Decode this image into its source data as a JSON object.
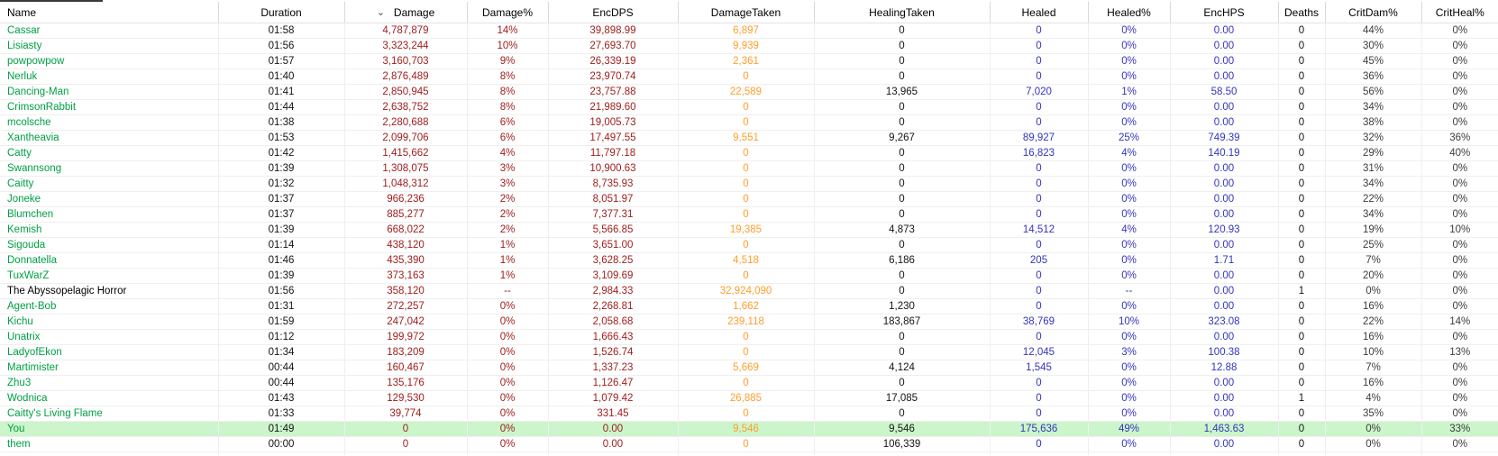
{
  "table": {
    "sort_indicator": "⌄",
    "sorted_column": "Damage",
    "columns": [
      {
        "key": "name",
        "label": "Name"
      },
      {
        "key": "duration",
        "label": "Duration"
      },
      {
        "key": "damage",
        "label": "Damage",
        "sorted_desc": true
      },
      {
        "key": "damage_pct",
        "label": "Damage%"
      },
      {
        "key": "encdps",
        "label": "EncDPS"
      },
      {
        "key": "damage_taken",
        "label": "DamageTaken"
      },
      {
        "key": "healing_taken",
        "label": "HealingTaken"
      },
      {
        "key": "healed",
        "label": "Healed"
      },
      {
        "key": "healed_pct",
        "label": "Healed%"
      },
      {
        "key": "enchps",
        "label": "EncHPS"
      },
      {
        "key": "deaths",
        "label": "Deaths"
      },
      {
        "key": "critdam_pct",
        "label": "CritDam%"
      },
      {
        "key": "critheal_pct",
        "label": "CritHeal%"
      }
    ],
    "rows": [
      {
        "name": "Cassar",
        "duration": "01:58",
        "damage": "4,787,879",
        "damage_pct": "14%",
        "encdps": "39,898.99",
        "damage_taken": "6,897",
        "healing_taken": "0",
        "healed": "0",
        "healed_pct": "0%",
        "enchps": "0.00",
        "deaths": "0",
        "critdam_pct": "44%",
        "critheal_pct": "0%",
        "type": "player",
        "highlight": false
      },
      {
        "name": "Lisiasty",
        "duration": "01:56",
        "damage": "3,323,244",
        "damage_pct": "10%",
        "encdps": "27,693.70",
        "damage_taken": "9,939",
        "healing_taken": "0",
        "healed": "0",
        "healed_pct": "0%",
        "enchps": "0.00",
        "deaths": "0",
        "critdam_pct": "30%",
        "critheal_pct": "0%",
        "type": "player",
        "highlight": false
      },
      {
        "name": "powpowpow",
        "duration": "01:57",
        "damage": "3,160,703",
        "damage_pct": "9%",
        "encdps": "26,339.19",
        "damage_taken": "2,361",
        "healing_taken": "0",
        "healed": "0",
        "healed_pct": "0%",
        "enchps": "0.00",
        "deaths": "0",
        "critdam_pct": "45%",
        "critheal_pct": "0%",
        "type": "player",
        "highlight": false
      },
      {
        "name": "Nerluk",
        "duration": "01:40",
        "damage": "2,876,489",
        "damage_pct": "8%",
        "encdps": "23,970.74",
        "damage_taken": "0",
        "healing_taken": "0",
        "healed": "0",
        "healed_pct": "0%",
        "enchps": "0.00",
        "deaths": "0",
        "critdam_pct": "36%",
        "critheal_pct": "0%",
        "type": "player",
        "highlight": false
      },
      {
        "name": "Dancing-Man",
        "duration": "01:41",
        "damage": "2,850,945",
        "damage_pct": "8%",
        "encdps": "23,757.88",
        "damage_taken": "22,589",
        "healing_taken": "13,965",
        "healed": "7,020",
        "healed_pct": "1%",
        "enchps": "58.50",
        "deaths": "0",
        "critdam_pct": "56%",
        "critheal_pct": "0%",
        "type": "player",
        "highlight": false
      },
      {
        "name": "CrimsonRabbit",
        "duration": "01:44",
        "damage": "2,638,752",
        "damage_pct": "8%",
        "encdps": "21,989.60",
        "damage_taken": "0",
        "healing_taken": "0",
        "healed": "0",
        "healed_pct": "0%",
        "enchps": "0.00",
        "deaths": "0",
        "critdam_pct": "34%",
        "critheal_pct": "0%",
        "type": "player",
        "highlight": false
      },
      {
        "name": "mcolsche",
        "duration": "01:38",
        "damage": "2,280,688",
        "damage_pct": "6%",
        "encdps": "19,005.73",
        "damage_taken": "0",
        "healing_taken": "0",
        "healed": "0",
        "healed_pct": "0%",
        "enchps": "0.00",
        "deaths": "0",
        "critdam_pct": "38%",
        "critheal_pct": "0%",
        "type": "player",
        "highlight": false
      },
      {
        "name": "Xantheavia",
        "duration": "01:53",
        "damage": "2,099,706",
        "damage_pct": "6%",
        "encdps": "17,497.55",
        "damage_taken": "9,551",
        "healing_taken": "9,267",
        "healed": "89,927",
        "healed_pct": "25%",
        "enchps": "749.39",
        "deaths": "0",
        "critdam_pct": "32%",
        "critheal_pct": "36%",
        "type": "player",
        "highlight": false
      },
      {
        "name": "Catty",
        "duration": "01:42",
        "damage": "1,415,662",
        "damage_pct": "4%",
        "encdps": "11,797.18",
        "damage_taken": "0",
        "healing_taken": "0",
        "healed": "16,823",
        "healed_pct": "4%",
        "enchps": "140.19",
        "deaths": "0",
        "critdam_pct": "29%",
        "critheal_pct": "40%",
        "type": "player",
        "highlight": false
      },
      {
        "name": "Swannsong",
        "duration": "01:39",
        "damage": "1,308,075",
        "damage_pct": "3%",
        "encdps": "10,900.63",
        "damage_taken": "0",
        "healing_taken": "0",
        "healed": "0",
        "healed_pct": "0%",
        "enchps": "0.00",
        "deaths": "0",
        "critdam_pct": "31%",
        "critheal_pct": "0%",
        "type": "player",
        "highlight": false
      },
      {
        "name": "Caitty",
        "duration": "01:32",
        "damage": "1,048,312",
        "damage_pct": "3%",
        "encdps": "8,735.93",
        "damage_taken": "0",
        "healing_taken": "0",
        "healed": "0",
        "healed_pct": "0%",
        "enchps": "0.00",
        "deaths": "0",
        "critdam_pct": "34%",
        "critheal_pct": "0%",
        "type": "player",
        "highlight": false
      },
      {
        "name": "Joneke",
        "duration": "01:37",
        "damage": "966,236",
        "damage_pct": "2%",
        "encdps": "8,051.97",
        "damage_taken": "0",
        "healing_taken": "0",
        "healed": "0",
        "healed_pct": "0%",
        "enchps": "0.00",
        "deaths": "0",
        "critdam_pct": "22%",
        "critheal_pct": "0%",
        "type": "player",
        "highlight": false
      },
      {
        "name": "Blumchen",
        "duration": "01:37",
        "damage": "885,277",
        "damage_pct": "2%",
        "encdps": "7,377.31",
        "damage_taken": "0",
        "healing_taken": "0",
        "healed": "0",
        "healed_pct": "0%",
        "enchps": "0.00",
        "deaths": "0",
        "critdam_pct": "34%",
        "critheal_pct": "0%",
        "type": "player",
        "highlight": false
      },
      {
        "name": "Kemish",
        "duration": "01:39",
        "damage": "668,022",
        "damage_pct": "2%",
        "encdps": "5,566.85",
        "damage_taken": "19,385",
        "healing_taken": "4,873",
        "healed": "14,512",
        "healed_pct": "4%",
        "enchps": "120.93",
        "deaths": "0",
        "critdam_pct": "19%",
        "critheal_pct": "10%",
        "type": "player",
        "highlight": false
      },
      {
        "name": "Sigouda",
        "duration": "01:14",
        "damage": "438,120",
        "damage_pct": "1%",
        "encdps": "3,651.00",
        "damage_taken": "0",
        "healing_taken": "0",
        "healed": "0",
        "healed_pct": "0%",
        "enchps": "0.00",
        "deaths": "0",
        "critdam_pct": "25%",
        "critheal_pct": "0%",
        "type": "player",
        "highlight": false
      },
      {
        "name": "Donnatella",
        "duration": "01:46",
        "damage": "435,390",
        "damage_pct": "1%",
        "encdps": "3,628.25",
        "damage_taken": "4,518",
        "healing_taken": "6,186",
        "healed": "205",
        "healed_pct": "0%",
        "enchps": "1.71",
        "deaths": "0",
        "critdam_pct": "7%",
        "critheal_pct": "0%",
        "type": "player",
        "highlight": false
      },
      {
        "name": "TuxWarZ",
        "duration": "01:39",
        "damage": "373,163",
        "damage_pct": "1%",
        "encdps": "3,109.69",
        "damage_taken": "0",
        "healing_taken": "0",
        "healed": "0",
        "healed_pct": "0%",
        "enchps": "0.00",
        "deaths": "0",
        "critdam_pct": "20%",
        "critheal_pct": "0%",
        "type": "player",
        "highlight": false
      },
      {
        "name": "The Abyssopelagic Horror",
        "duration": "01:56",
        "damage": "358,120",
        "damage_pct": "--",
        "encdps": "2,984.33",
        "damage_taken": "32,924,090",
        "healing_taken": "0",
        "healed": "0",
        "healed_pct": "--",
        "enchps": "0.00",
        "deaths": "1",
        "critdam_pct": "0%",
        "critheal_pct": "0%",
        "type": "enemy",
        "highlight": false
      },
      {
        "name": "Agent-Bob",
        "duration": "01:31",
        "damage": "272,257",
        "damage_pct": "0%",
        "encdps": "2,268.81",
        "damage_taken": "1,662",
        "healing_taken": "1,230",
        "healed": "0",
        "healed_pct": "0%",
        "enchps": "0.00",
        "deaths": "0",
        "critdam_pct": "16%",
        "critheal_pct": "0%",
        "type": "player",
        "highlight": false
      },
      {
        "name": "Kichu",
        "duration": "01:59",
        "damage": "247,042",
        "damage_pct": "0%",
        "encdps": "2,058.68",
        "damage_taken": "239,118",
        "healing_taken": "183,867",
        "healed": "38,769",
        "healed_pct": "10%",
        "enchps": "323.08",
        "deaths": "0",
        "critdam_pct": "22%",
        "critheal_pct": "14%",
        "type": "player",
        "highlight": false
      },
      {
        "name": "Unatrix",
        "duration": "01:12",
        "damage": "199,972",
        "damage_pct": "0%",
        "encdps": "1,666.43",
        "damage_taken": "0",
        "healing_taken": "0",
        "healed": "0",
        "healed_pct": "0%",
        "enchps": "0.00",
        "deaths": "0",
        "critdam_pct": "16%",
        "critheal_pct": "0%",
        "type": "player",
        "highlight": false
      },
      {
        "name": "LadyofEkon",
        "duration": "01:34",
        "damage": "183,209",
        "damage_pct": "0%",
        "encdps": "1,526.74",
        "damage_taken": "0",
        "healing_taken": "0",
        "healed": "12,045",
        "healed_pct": "3%",
        "enchps": "100.38",
        "deaths": "0",
        "critdam_pct": "10%",
        "critheal_pct": "13%",
        "type": "player",
        "highlight": false
      },
      {
        "name": "Martimister",
        "duration": "00:44",
        "damage": "160,467",
        "damage_pct": "0%",
        "encdps": "1,337.23",
        "damage_taken": "5,669",
        "healing_taken": "4,124",
        "healed": "1,545",
        "healed_pct": "0%",
        "enchps": "12.88",
        "deaths": "0",
        "critdam_pct": "7%",
        "critheal_pct": "0%",
        "type": "player",
        "highlight": false
      },
      {
        "name": "Zhu3",
        "duration": "00:44",
        "damage": "135,176",
        "damage_pct": "0%",
        "encdps": "1,126.47",
        "damage_taken": "0",
        "healing_taken": "0",
        "healed": "0",
        "healed_pct": "0%",
        "enchps": "0.00",
        "deaths": "0",
        "critdam_pct": "16%",
        "critheal_pct": "0%",
        "type": "player",
        "highlight": false
      },
      {
        "name": "Wodnica",
        "duration": "01:43",
        "damage": "129,530",
        "damage_pct": "0%",
        "encdps": "1,079.42",
        "damage_taken": "26,885",
        "healing_taken": "17,085",
        "healed": "0",
        "healed_pct": "0%",
        "enchps": "0.00",
        "deaths": "1",
        "critdam_pct": "4%",
        "critheal_pct": "0%",
        "type": "player",
        "highlight": false
      },
      {
        "name": "Caitty's Living Flame",
        "duration": "01:33",
        "damage": "39,774",
        "damage_pct": "0%",
        "encdps": "331.45",
        "damage_taken": "0",
        "healing_taken": "0",
        "healed": "0",
        "healed_pct": "0%",
        "enchps": "0.00",
        "deaths": "0",
        "critdam_pct": "35%",
        "critheal_pct": "0%",
        "type": "player",
        "highlight": false
      },
      {
        "name": "You",
        "duration": "01:49",
        "damage": "0",
        "damage_pct": "0%",
        "encdps": "0.00",
        "damage_taken": "9,546",
        "healing_taken": "9,546",
        "healed": "175,636",
        "healed_pct": "49%",
        "enchps": "1,463.63",
        "deaths": "0",
        "critdam_pct": "0%",
        "critheal_pct": "33%",
        "type": "player",
        "highlight": true
      },
      {
        "name": "them",
        "duration": "00:00",
        "damage": "0",
        "damage_pct": "0%",
        "encdps": "0.00",
        "damage_taken": "0",
        "healing_taken": "106,339",
        "healed": "0",
        "healed_pct": "0%",
        "enchps": "0.00",
        "deaths": "0",
        "critdam_pct": "0%",
        "critheal_pct": "0%",
        "type": "player",
        "highlight": false
      }
    ]
  },
  "colors": {
    "player_name": "#00A044",
    "enemy_name": "#000000",
    "damage_text": "#9E1B1B",
    "damage_taken_text": "#FF9E2C",
    "healing_text": "#3434BE",
    "crit_text": "#3D3D3D",
    "highlight_row_bg": "#CCF5CB"
  }
}
